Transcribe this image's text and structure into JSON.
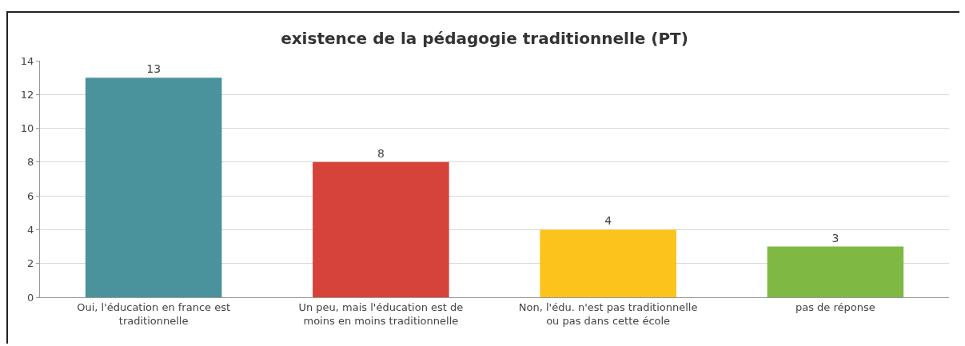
{
  "chart_data": {
    "type": "bar",
    "title": "existence de la pédagogie traditionnelle (PT)",
    "categories": [
      "Oui, l'éducation en france est traditionnelle",
      "Un peu, mais l'éducation est de moins en moins traditionnelle",
      "Non, l'édu. n'est pas traditionnelle ou pas dans cette école",
      "pas de réponse"
    ],
    "values": [
      13,
      8,
      4,
      3
    ],
    "colors": [
      "#4a939c",
      "#d6433b",
      "#fbc31b",
      "#7fb944"
    ],
    "ylim": [
      0,
      14
    ],
    "yticks": [
      0,
      2,
      4,
      6,
      8,
      10,
      12,
      14
    ],
    "grid": "y",
    "data_labels": true
  }
}
